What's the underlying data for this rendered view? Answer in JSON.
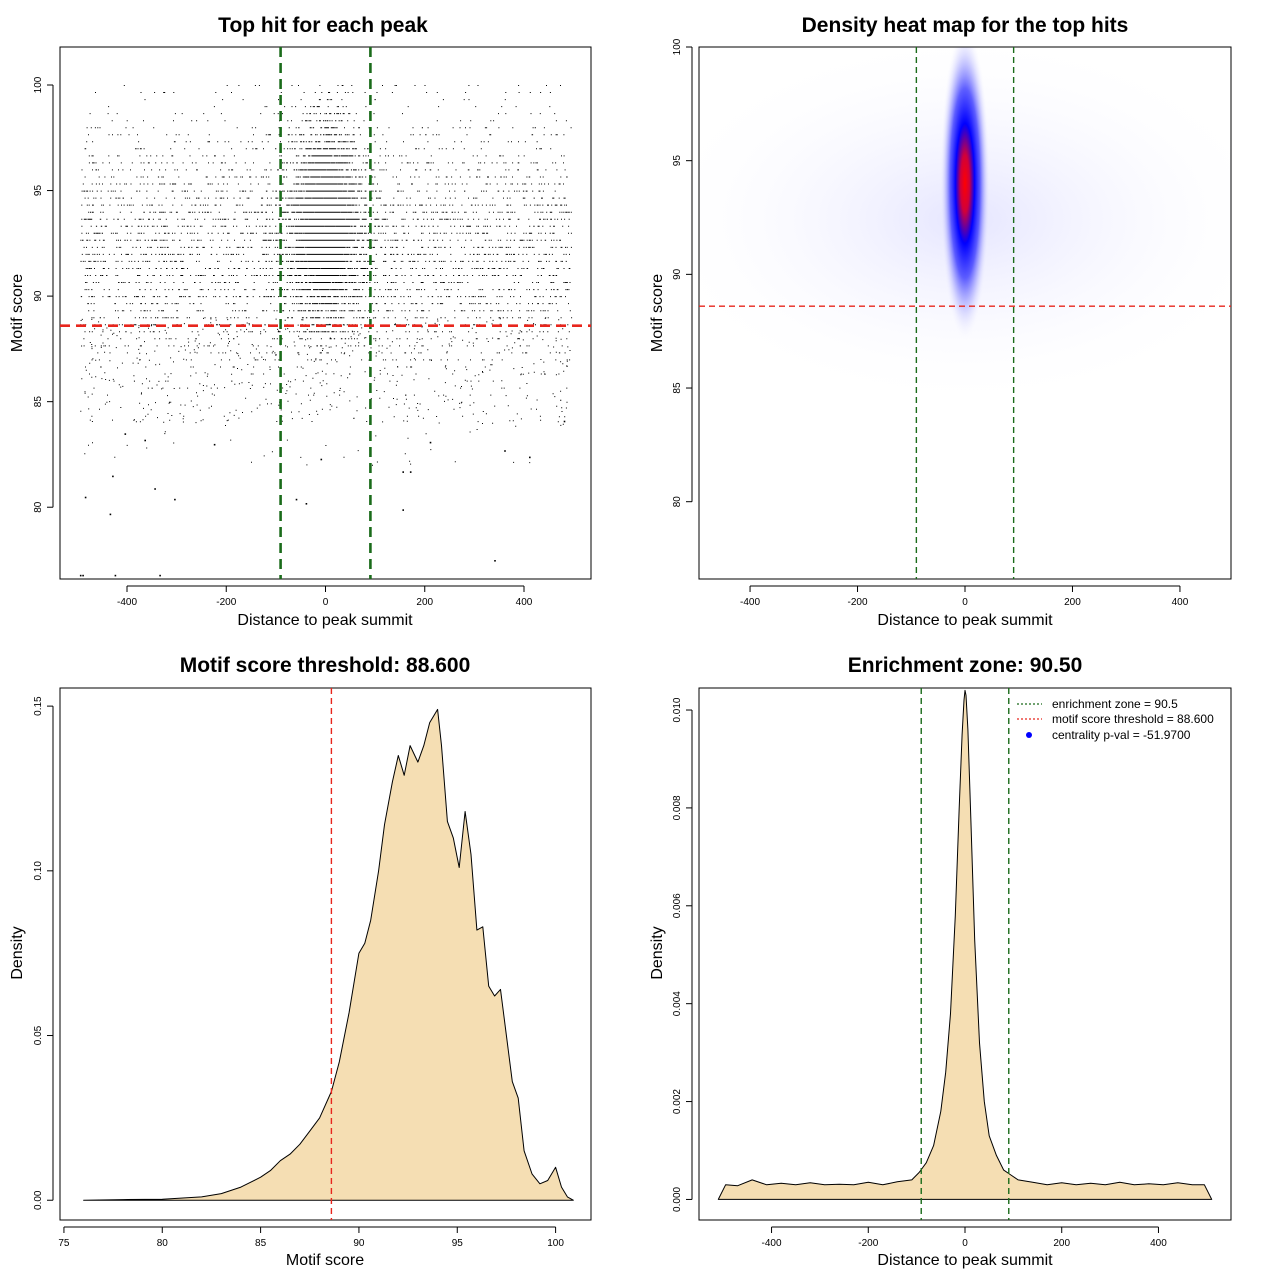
{
  "colors": {
    "points": "#000000",
    "threshold_line": "#e8261d",
    "zone_line": "#1a6b1a",
    "density_fill": "#f5deb3",
    "heat_low": "#ffffff",
    "heat_mid": "#0000ff",
    "heat_high": "#ff0000",
    "legend_dot": "#0000ff"
  },
  "chart_data": [
    {
      "id": "scatter",
      "type": "scatter",
      "title": "Top hit for each peak",
      "xlabel": "Distance to peak summit",
      "ylabel": "Motif score",
      "xlim": [
        -535,
        535
      ],
      "ylim": [
        76.6,
        101.8
      ],
      "xticks": [
        -400,
        -200,
        0,
        200,
        400
      ],
      "yticks": [
        80,
        85,
        90,
        95,
        100
      ],
      "vlines": [
        -90.5,
        90.5
      ],
      "hline": 88.6,
      "grid": false,
      "points_description": "dense cloud of ~10000 top-hit points, concentrated near distance 0 and motif score 89–100; outliers down to ~76.8",
      "outliers": [
        {
          "x": -495,
          "y": 76.8
        },
        {
          "x": -490,
          "y": 76.8
        },
        {
          "x": -425,
          "y": 76.8
        },
        {
          "x": -335,
          "y": 76.8
        },
        {
          "x": -485,
          "y": 80.5
        },
        {
          "x": -435,
          "y": 79.7
        },
        {
          "x": -345,
          "y": 80.9
        },
        {
          "x": -305,
          "y": 80.4
        },
        {
          "x": -430,
          "y": 81.5
        },
        {
          "x": -60,
          "y": 80.4
        },
        {
          "x": -40,
          "y": 80.2
        },
        {
          "x": 155,
          "y": 81.7
        },
        {
          "x": 170,
          "y": 81.7
        },
        {
          "x": 155,
          "y": 79.9
        },
        {
          "x": 340,
          "y": 77.5
        },
        {
          "x": -10,
          "y": 82.3
        },
        {
          "x": -405,
          "y": 83.5
        },
        {
          "x": -365,
          "y": 83.2
        },
        {
          "x": -225,
          "y": 83.0
        },
        {
          "x": 210,
          "y": 83.1
        },
        {
          "x": 360,
          "y": 82.7
        },
        {
          "x": 410,
          "y": 82.4
        },
        {
          "x": 480,
          "y": 84.1
        }
      ]
    },
    {
      "id": "heatmap",
      "type": "heatmap",
      "title": "Density heat map for the top hits",
      "xlabel": "Distance to peak summit",
      "ylabel": "Motif score",
      "xlim": [
        -495,
        495
      ],
      "ylim": [
        76.6,
        100
      ],
      "xticks": [
        -400,
        -200,
        0,
        200,
        400
      ],
      "yticks": [
        80,
        85,
        90,
        95,
        100
      ],
      "vlines": [
        -90.5,
        90.5
      ],
      "hline": 88.6,
      "hotspot": {
        "x": 0,
        "y": 94
      },
      "color_scale": [
        "white",
        "blue",
        "red"
      ]
    },
    {
      "id": "score-density",
      "type": "area",
      "title": "Motif score threshold: 88.600",
      "xlabel": "Motif score",
      "ylabel": "Density",
      "xlim": [
        74.8,
        101.8
      ],
      "ylim": [
        -0.006,
        0.1555
      ],
      "xticks": [
        75,
        80,
        85,
        90,
        95,
        100
      ],
      "yticks": [
        0.0,
        0.05,
        0.1,
        0.15
      ],
      "ytick_labels": [
        "0.00",
        "0.05",
        "0.10",
        "0.15"
      ],
      "vlines": [
        88.6
      ],
      "x": [
        76,
        78,
        80,
        82,
        83,
        84,
        85,
        85.5,
        86,
        86.5,
        87,
        87.5,
        88,
        88.6,
        89,
        89.5,
        90,
        90.3,
        90.6,
        91,
        91.3,
        91.7,
        92.0,
        92.3,
        92.6,
        93.0,
        93.3,
        93.6,
        94.0,
        94.2,
        94.5,
        94.8,
        95.1,
        95.4,
        95.7,
        96.0,
        96.3,
        96.6,
        96.9,
        97.2,
        97.5,
        97.8,
        98.1,
        98.4,
        98.8,
        99.2,
        99.6,
        100.0,
        100.3,
        100.6,
        100.9
      ],
      "y": [
        0.0,
        0.0002,
        0.0003,
        0.001,
        0.002,
        0.004,
        0.007,
        0.009,
        0.012,
        0.014,
        0.017,
        0.021,
        0.025,
        0.033,
        0.042,
        0.057,
        0.075,
        0.078,
        0.085,
        0.1,
        0.114,
        0.127,
        0.135,
        0.129,
        0.138,
        0.133,
        0.138,
        0.145,
        0.149,
        0.138,
        0.115,
        0.11,
        0.101,
        0.118,
        0.105,
        0.082,
        0.083,
        0.065,
        0.062,
        0.064,
        0.05,
        0.036,
        0.031,
        0.015,
        0.008,
        0.005,
        0.006,
        0.01,
        0.004,
        0.001,
        0.0
      ]
    },
    {
      "id": "distance-density",
      "type": "area",
      "title": "Enrichment zone: 90.50",
      "xlabel": "Distance to peak summit",
      "ylabel": "Density",
      "xlim": [
        -550,
        550
      ],
      "ylim": [
        -0.00042,
        0.01045
      ],
      "xticks": [
        -400,
        -200,
        0,
        200,
        400
      ],
      "yticks": [
        0.0,
        0.002,
        0.004,
        0.006,
        0.008,
        0.01
      ],
      "ytick_labels": [
        "0.000",
        "0.002",
        "0.004",
        "0.006",
        "0.008",
        "0.010"
      ],
      "vlines": [
        -90.5,
        90.5
      ],
      "x": [
        -510,
        -495,
        -470,
        -440,
        -410,
        -380,
        -350,
        -320,
        -290,
        -260,
        -230,
        -200,
        -170,
        -140,
        -110,
        -95,
        -80,
        -65,
        -50,
        -40,
        -30,
        -20,
        -12,
        -6,
        -2,
        0,
        2,
        6,
        12,
        20,
        30,
        40,
        50,
        65,
        80,
        95,
        110,
        140,
        170,
        200,
        230,
        260,
        290,
        320,
        350,
        380,
        410,
        440,
        470,
        495,
        510
      ],
      "y": [
        0.0,
        0.0003,
        0.00028,
        0.0004,
        0.0003,
        0.00033,
        0.0003,
        0.00034,
        0.0003,
        0.00031,
        0.0003,
        0.00035,
        0.0003,
        0.00036,
        0.0004,
        0.00055,
        0.00075,
        0.0011,
        0.0018,
        0.0026,
        0.0038,
        0.0058,
        0.008,
        0.0095,
        0.0102,
        0.0104,
        0.0103,
        0.0096,
        0.0078,
        0.0053,
        0.0032,
        0.002,
        0.0013,
        0.0009,
        0.0006,
        0.0005,
        0.0004,
        0.00035,
        0.0003,
        0.00034,
        0.0003,
        0.00033,
        0.0003,
        0.00035,
        0.0003,
        0.00032,
        0.0003,
        0.00034,
        0.0003,
        0.0003,
        0.0
      ],
      "legend": {
        "position": "top-right",
        "entries": [
          {
            "label": "enrichment zone = 90.5",
            "style": "dotted",
            "color": "#1a6b1a"
          },
          {
            "label": "motif score threshold = 88.600",
            "style": "dotted",
            "color": "#e8261d"
          },
          {
            "label": "centrality p-val = -51.9700",
            "style": "dot",
            "color": "#0000ff"
          }
        ]
      }
    }
  ]
}
